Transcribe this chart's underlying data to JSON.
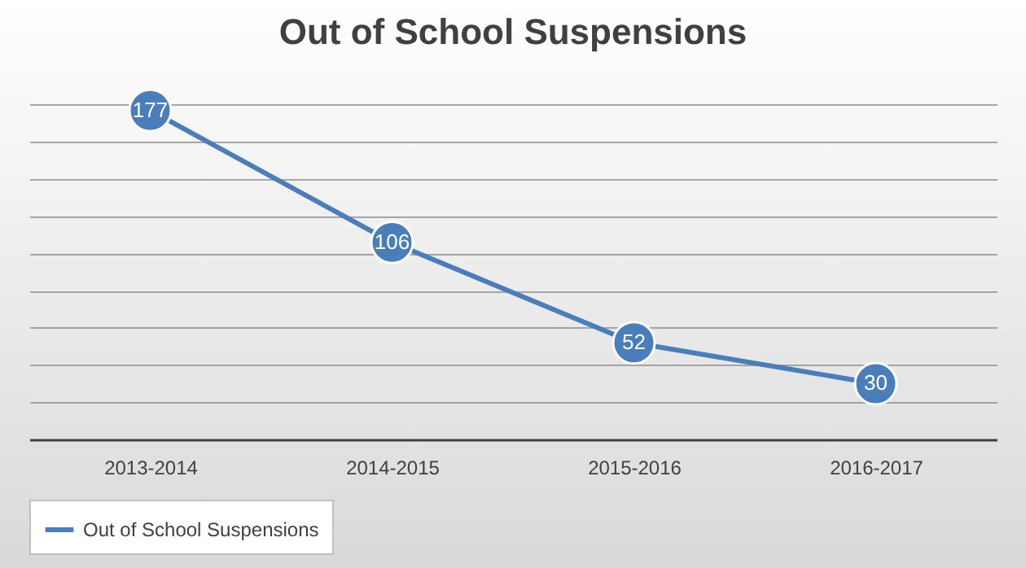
{
  "chart_data": {
    "type": "line",
    "title": "Out of School Suspensions",
    "categories": [
      "2013-2014",
      "2014-2015",
      "2015-2016",
      "2016-2017"
    ],
    "series": [
      {
        "name": "Out of School Suspensions",
        "color": "#4a7ebb",
        "values": [
          177,
          106,
          52,
          30
        ]
      }
    ],
    "tick_labels": "x",
    "grid": "y",
    "legend": "bottom",
    "marker": "circle",
    "line_style": "solid",
    "data_labels": true
  }
}
